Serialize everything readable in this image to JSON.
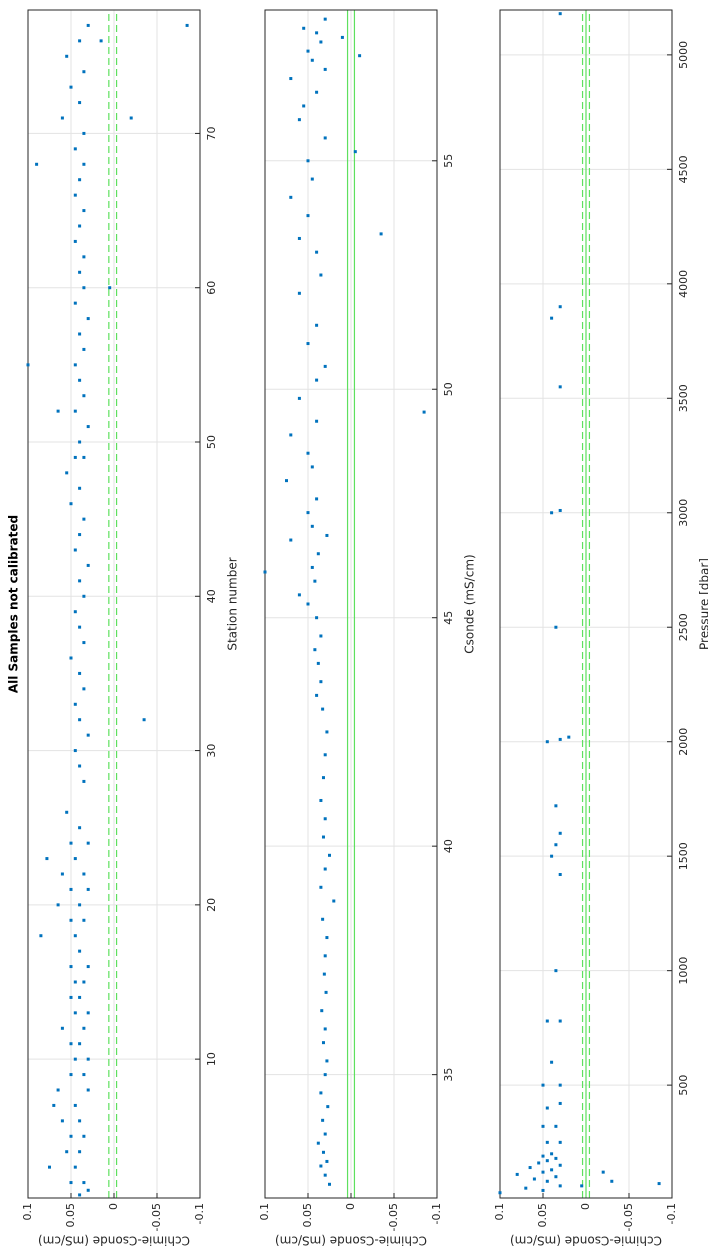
{
  "chart_data": [
    {
      "type": "scatter",
      "title": "All Samples not calibrated",
      "x_label": "Station number",
      "y_label": "Cchimie-Csonde (mS/cm)",
      "color": "#0072bd",
      "xlim": [
        1,
        78
      ],
      "ylim": [
        -0.1,
        0.1
      ],
      "xticks": [
        10,
        20,
        30,
        40,
        50,
        60,
        70
      ],
      "yticks": [
        -0.1,
        -0.05,
        0,
        0.05,
        0.1
      ],
      "grid": true,
      "ref_lines": [
        {
          "value": 0.006,
          "style": "dashed",
          "color": "#5ee05e"
        },
        {
          "value": -0.003,
          "style": "dashed",
          "color": "#5ee05e"
        }
      ],
      "x": [
        1.2,
        1.5,
        2,
        2,
        3,
        3,
        4,
        4,
        5,
        5,
        6,
        6,
        7,
        7,
        8,
        8,
        9,
        9,
        10,
        10,
        11,
        11,
        12,
        12,
        13,
        13,
        14,
        14,
        15,
        15,
        16,
        16,
        17,
        18,
        18,
        19,
        19,
        20,
        20,
        21,
        21,
        22,
        22,
        23,
        23,
        24,
        24,
        25,
        26,
        28,
        29,
        30,
        31,
        32,
        32,
        33,
        34,
        35,
        36,
        37,
        38,
        39,
        40,
        41,
        42,
        43,
        44,
        45,
        46,
        47,
        48,
        49,
        49,
        50,
        51,
        52,
        52,
        53,
        54,
        55,
        55,
        56,
        57,
        58,
        59,
        60,
        60,
        61,
        62,
        63,
        64,
        65,
        66,
        67,
        68,
        68,
        69,
        70,
        71,
        71,
        72,
        73,
        74,
        75,
        76,
        76,
        77,
        77
      ],
      "y": [
        0.04,
        0.03,
        0.05,
        0.035,
        0.075,
        0.045,
        0.04,
        0.055,
        0.035,
        0.05,
        0.06,
        0.04,
        0.07,
        0.045,
        0.065,
        0.03,
        0.05,
        0.035,
        0.045,
        0.03,
        0.04,
        0.05,
        0.035,
        0.06,
        0.045,
        0.03,
        0.05,
        0.04,
        0.035,
        0.045,
        0.05,
        0.03,
        0.04,
        0.085,
        0.045,
        0.05,
        0.035,
        0.065,
        0.04,
        0.05,
        0.03,
        0.06,
        0.035,
        0.078,
        0.045,
        0.05,
        0.03,
        0.04,
        0.055,
        0.035,
        0.04,
        0.045,
        0.03,
        -0.035,
        0.04,
        0.045,
        0.035,
        0.04,
        0.05,
        0.035,
        0.04,
        0.045,
        0.035,
        0.04,
        0.03,
        0.045,
        0.04,
        0.035,
        0.05,
        0.04,
        0.055,
        0.045,
        0.035,
        0.04,
        0.03,
        0.065,
        0.045,
        0.035,
        0.04,
        0.1,
        0.045,
        0.035,
        0.04,
        0.03,
        0.045,
        0.005,
        0.035,
        0.04,
        0.035,
        0.045,
        0.04,
        0.035,
        0.045,
        0.04,
        0.09,
        0.035,
        0.045,
        0.035,
        -0.02,
        0.06,
        0.04,
        0.05,
        0.035,
        0.055,
        0.04,
        0.015,
        -0.085,
        0.03
      ]
    },
    {
      "type": "scatter",
      "x_label": "Csonde (mS/cm)",
      "y_label": "Cchimie-Csonde (mS/cm)",
      "color": "#0072bd",
      "xlim": [
        32.3,
        58.3
      ],
      "ylim": [
        -0.1,
        0.1
      ],
      "xticks": [
        35,
        40,
        45,
        50,
        55
      ],
      "yticks": [
        -0.1,
        -0.05,
        0,
        0.05,
        0.1
      ],
      "grid": true,
      "ref_lines": [
        {
          "value": 0.004,
          "style": "solid",
          "color": "#5ee05e"
        },
        {
          "value": -0.004,
          "style": "solid",
          "color": "#5ee05e"
        }
      ],
      "x": [
        32.6,
        32.8,
        33,
        33.1,
        33.3,
        33.5,
        33.7,
        34,
        34.3,
        34.6,
        35,
        35.3,
        35.7,
        36,
        36.4,
        36.8,
        37.2,
        37.6,
        38,
        38.4,
        38.8,
        39.1,
        39.5,
        39.8,
        40.2,
        40.6,
        41,
        41.5,
        42,
        42.5,
        43,
        43.3,
        43.6,
        44,
        44.3,
        44.6,
        45,
        45.3,
        45.5,
        45.8,
        46.1,
        46.4,
        46.7,
        46.8,
        47,
        47.3,
        47.6,
        48,
        48.3,
        48.6,
        49,
        49.3,
        49.5,
        49.8,
        50.2,
        50.5,
        51,
        51.4,
        52.1,
        52.5,
        53,
        53.3,
        53.4,
        53.8,
        54.2,
        54.6,
        55,
        55.2,
        55.5,
        55.9,
        56.2,
        56.5,
        56.8,
        57,
        57.2,
        57.3,
        57.4,
        57.6,
        57.7,
        57.8,
        57.9,
        58.1,
        46
      ],
      "y": [
        0.025,
        0.03,
        0.035,
        0.028,
        0.032,
        0.038,
        0.03,
        0.033,
        0.027,
        0.035,
        0.03,
        0.028,
        0.032,
        0.03,
        0.034,
        0.029,
        0.031,
        0.03,
        0.028,
        0.033,
        0.02,
        0.035,
        0.03,
        0.025,
        0.032,
        0.03,
        0.035,
        0.032,
        0.03,
        0.028,
        0.033,
        0.04,
        0.035,
        0.038,
        0.042,
        0.035,
        0.04,
        0.05,
        0.06,
        0.042,
        0.045,
        0.038,
        0.07,
        0.028,
        0.045,
        0.05,
        0.04,
        0.075,
        0.045,
        0.05,
        0.07,
        0.04,
        -0.085,
        0.06,
        0.04,
        0.03,
        0.05,
        0.04,
        0.06,
        0.035,
        0.04,
        0.06,
        -0.035,
        0.05,
        0.07,
        0.045,
        0.05,
        -0.005,
        0.03,
        0.06,
        0.055,
        0.04,
        0.07,
        0.03,
        0.045,
        -0.01,
        0.05,
        0.035,
        0.01,
        0.04,
        0.055,
        0.03,
        0.1
      ]
    },
    {
      "type": "scatter",
      "x_label": "Pressure [dbar]",
      "y_label": "Cchimie-Csonde (mS/cm)",
      "color": "#0072bd",
      "xlim": [
        7,
        5196
      ],
      "ylim": [
        -0.1,
        0.1
      ],
      "xticks": [
        500,
        1000,
        1500,
        2000,
        2500,
        3000,
        3500,
        4000,
        4500,
        5000
      ],
      "yticks": [
        -0.1,
        -0.05,
        0,
        0.05,
        0.1
      ],
      "grid": true,
      "ref_lines": [
        {
          "value": 0.004,
          "style": "dashed",
          "color": "#5ee05e"
        },
        {
          "value": -0.004,
          "style": "dashed",
          "color": "#5ee05e"
        },
        {
          "value": 0,
          "style": "solid",
          "color": "#5ee05e"
        }
      ],
      "x": [
        30,
        40,
        50,
        60,
        70,
        80,
        90,
        100,
        110,
        120,
        130,
        140,
        150,
        160,
        170,
        180,
        190,
        60,
        80,
        120,
        200,
        250,
        250,
        320,
        320,
        400,
        420,
        500,
        500,
        600,
        780,
        780,
        1000,
        1420,
        1500,
        1550,
        1600,
        1720,
        2000,
        2010,
        2020,
        2500,
        3000,
        3010,
        3550,
        3850,
        3900,
        5180
      ],
      "y": [
        0.1,
        0.05,
        0.07,
        0.03,
        -0.085,
        0.045,
        0.06,
        0.035,
        0.08,
        0.05,
        0.04,
        0.065,
        0.03,
        0.055,
        0.045,
        0.035,
        0.05,
        0.005,
        -0.03,
        -0.02,
        0.04,
        0.045,
        0.03,
        0.05,
        0.035,
        0.045,
        0.03,
        0.05,
        0.03,
        0.04,
        0.045,
        0.03,
        0.035,
        0.03,
        0.04,
        0.035,
        0.03,
        0.035,
        0.045,
        0.03,
        0.02,
        0.035,
        0.04,
        0.03,
        0.03,
        0.04,
        0.03,
        0.03
      ]
    }
  ]
}
